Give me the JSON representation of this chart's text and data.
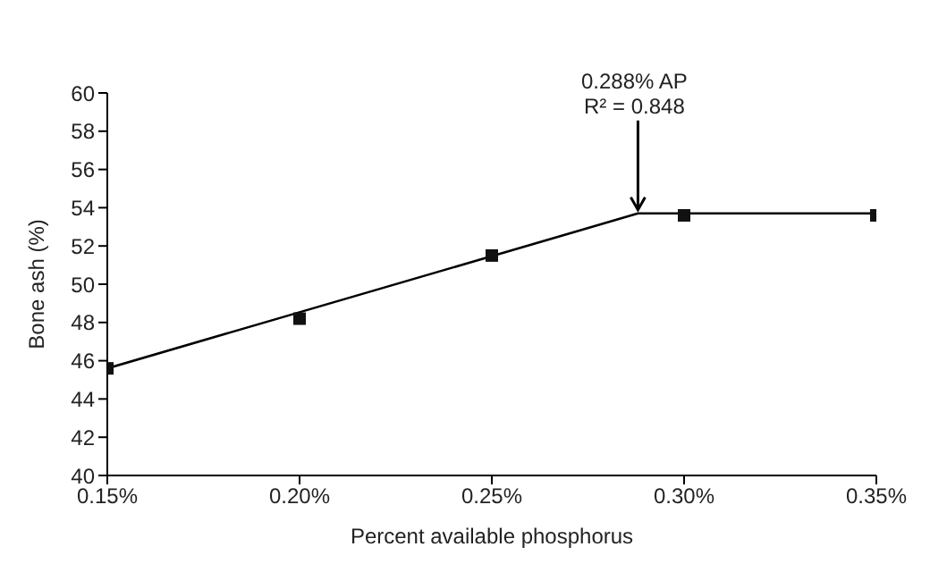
{
  "chart_data": {
    "type": "scatter",
    "xlabel": "Percent available phosphorus",
    "ylabel": "Bone ash (%)",
    "xlim": [
      0.15,
      0.35
    ],
    "xticks": [
      {
        "value": 0.15,
        "label": "0.15%"
      },
      {
        "value": 0.2,
        "label": "0.20%"
      },
      {
        "value": 0.25,
        "label": "0.25%"
      },
      {
        "value": 0.3,
        "label": "0.30%"
      },
      {
        "value": 0.35,
        "label": "0.35%"
      }
    ],
    "ylim": [
      40,
      60
    ],
    "yticks": [
      40,
      42,
      44,
      46,
      48,
      50,
      52,
      54,
      56,
      58,
      60
    ],
    "grid": false,
    "series": [
      {
        "type": "line",
        "color": "#000000",
        "marker": "none",
        "line_style": "solid",
        "x": [
          0.15,
          0.288,
          0.35
        ],
        "values": [
          45.6,
          53.7,
          53.7
        ]
      },
      {
        "color": "#111111",
        "marker": "square",
        "x": [
          0.15,
          0.2,
          0.25,
          0.3,
          0.35
        ],
        "values": [
          45.6,
          48.2,
          51.5,
          53.6,
          53.6
        ]
      }
    ],
    "annotations": [
      {
        "text": "0.288% AP",
        "x": 0.288,
        "y": 53.7
      },
      "R² = 0.848"
    ]
  }
}
